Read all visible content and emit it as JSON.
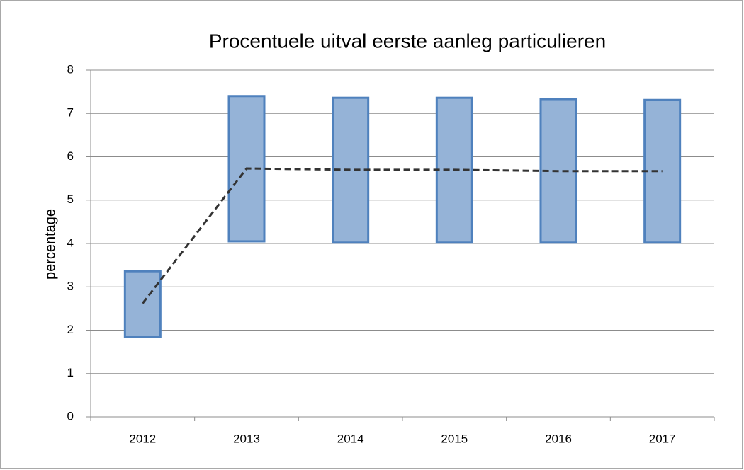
{
  "chart_data": {
    "type": "range_bar",
    "title": "Procentuele uitval eerste aanleg particulieren",
    "y_label": "percentage",
    "categories": [
      "2012",
      "2013",
      "2014",
      "2015",
      "2016",
      "2017"
    ],
    "bars": {
      "low": [
        1.84,
        4.05,
        4.02,
        4.02,
        4.02,
        4.02
      ],
      "high": [
        3.36,
        7.4,
        7.36,
        7.36,
        7.33,
        7.31
      ],
      "color": "#95b3d7",
      "edge_color": "#4f81bd"
    },
    "line": {
      "values": [
        2.62,
        5.73,
        5.7,
        5.7,
        5.67,
        5.67
      ],
      "color": "#333333",
      "dashed": true
    },
    "ylim": [
      0,
      8
    ],
    "yticks": [
      0,
      1,
      2,
      3,
      4,
      5,
      6,
      7,
      8
    ],
    "grid": true
  }
}
